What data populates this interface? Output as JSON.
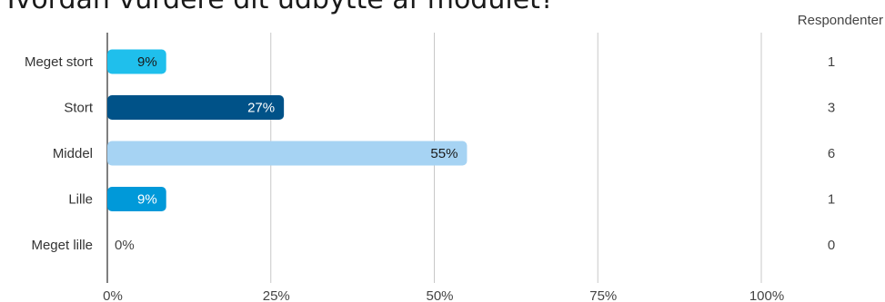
{
  "title": "Hvordan vurdere dit udbytte af modulet?",
  "respondents_header": "Respondenter",
  "chart_data": {
    "type": "bar",
    "orientation": "horizontal",
    "title": "",
    "categories": [
      "Meget stort",
      "Stort",
      "Middel",
      "Lille",
      "Meget lille"
    ],
    "values": [
      9,
      27,
      55,
      9,
      0
    ],
    "value_labels": [
      "9%",
      "27%",
      "55%",
      "9%",
      "0%"
    ],
    "respondents": [
      1,
      3,
      6,
      1,
      0
    ],
    "colors": [
      "#1fbfec",
      "#005288",
      "#a6d3f3",
      "#0099d9",
      "#cccccc"
    ],
    "label_colors": [
      "#1a1a1a",
      "#ffffff",
      "#1a1a1a",
      "#ffffff",
      "#444444"
    ],
    "xlim": [
      0,
      100
    ],
    "xticks": [
      0,
      25,
      50,
      75,
      100
    ],
    "xtick_labels": [
      "0%",
      "25%",
      "50%",
      "75%",
      "100%"
    ],
    "grid": true,
    "xlabel": "",
    "ylabel": ""
  }
}
